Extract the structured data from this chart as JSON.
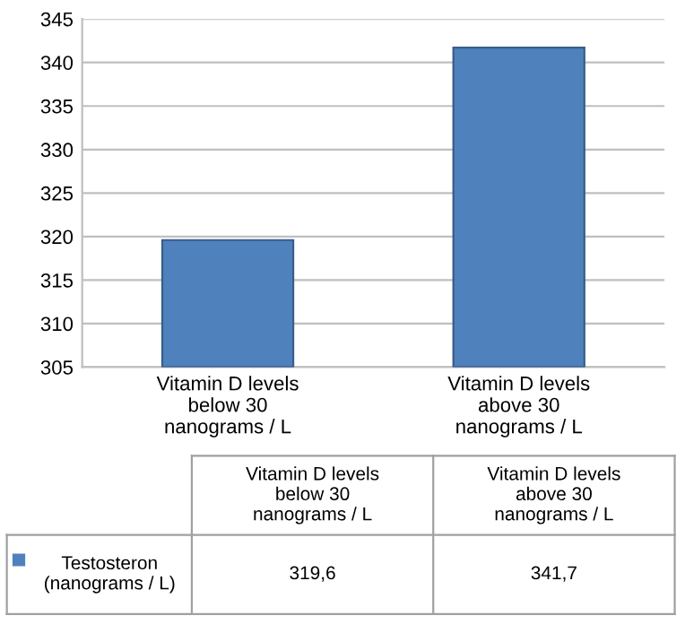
{
  "chart_data": {
    "type": "bar",
    "categories": [
      "Vitamin D levels\nbelow 30\nnanograms / L",
      "Vitamin D levels\nabove 30\nnanograms / L"
    ],
    "series": [
      {
        "name": "Testosteron\n(nanograms / L)",
        "color": "#4f81bd",
        "values": [
          319.6,
          341.7
        ],
        "value_labels": [
          "319,6",
          "341,7"
        ]
      }
    ],
    "ylim": [
      305,
      345
    ],
    "yticks": [
      305,
      310,
      315,
      320,
      325,
      330,
      335,
      340,
      345
    ],
    "grid": "y",
    "legend": "bottom"
  }
}
